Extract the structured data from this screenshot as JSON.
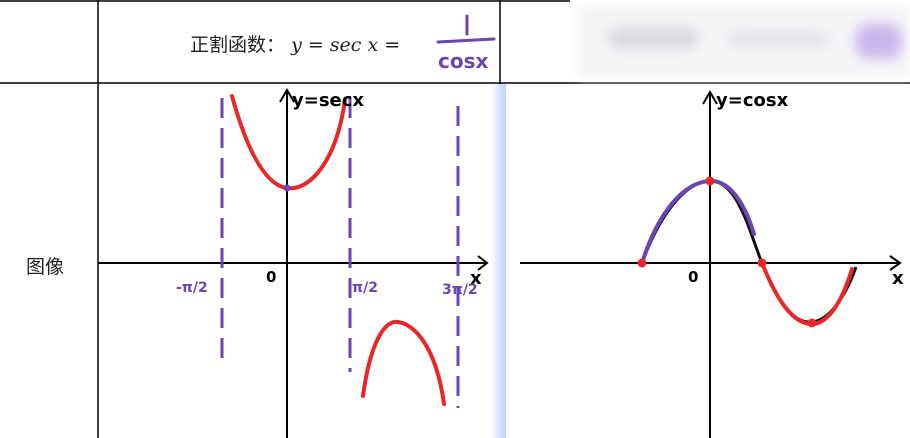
{
  "header": {
    "label_prefix": "正割函数：",
    "formula": "y = sec x ="
  },
  "row": {
    "label": "图像"
  },
  "left_graph": {
    "y_label": "y=secx",
    "x_label": "x",
    "origin": "0",
    "tick_neg": "-π/2",
    "tick_pos": "π/2",
    "tick_3pi2": "3π/2"
  },
  "right_graph": {
    "y_label": "y=cosx",
    "x_label": "x",
    "origin": "0"
  },
  "colors": {
    "red": "#e8272b",
    "purple": "#6a46b0",
    "black": "#111111",
    "grid": "#000000"
  }
}
